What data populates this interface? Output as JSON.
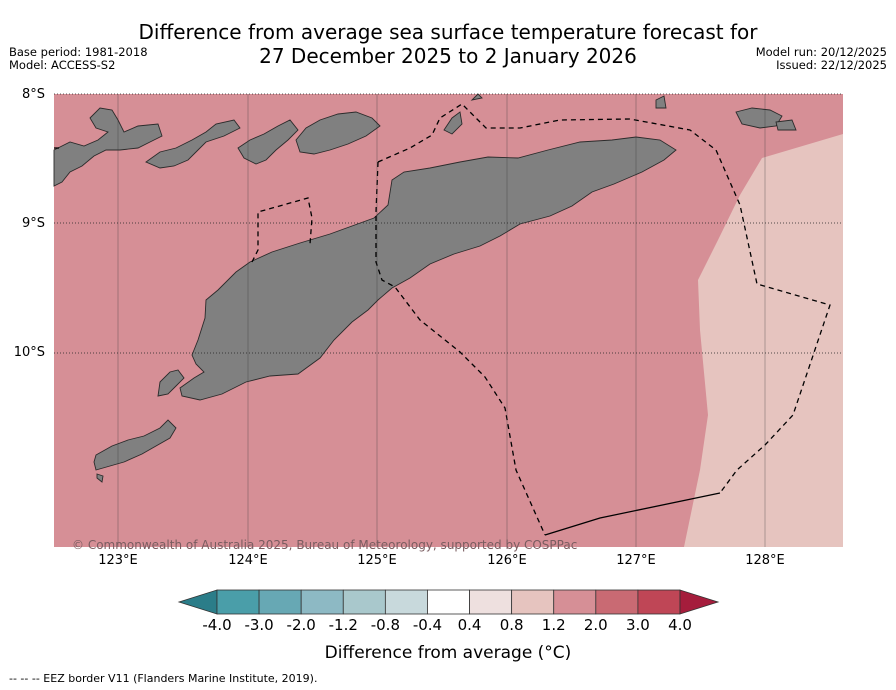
{
  "title": {
    "line1": "Difference from average sea surface temperature forecast for",
    "line2": "27 December 2025 to 2 January 2026"
  },
  "meta_left": {
    "base_period": "Base period: 1981-2018",
    "model": "Model: ACCESS-S2"
  },
  "meta_right": {
    "model_run": "Model run: 20/12/2025",
    "issued": "Issued: 22/12/2025"
  },
  "map": {
    "lat_labels": [
      "8°S",
      "9°S",
      "10°S"
    ],
    "lon_labels": [
      "123°E",
      "124°E",
      "125°E",
      "126°E",
      "127°E",
      "128°E"
    ],
    "copyright": "© Commonwealth of Australia 2025, Bureau of Meteorology, supported by COSPPac",
    "colors": {
      "sea_main": "#d68f96",
      "sea_cool": "#e6c4bf",
      "land": "#808080"
    }
  },
  "colorbar": {
    "ticks": [
      "-4.0",
      "-3.0",
      "-2.0",
      "-1.2",
      "-0.8",
      "-0.4",
      "0.4",
      "0.8",
      "1.2",
      "2.0",
      "3.0",
      "4.0"
    ],
    "colors": [
      "#2b7d89",
      "#4a9ea9",
      "#67a8b4",
      "#8db9c4",
      "#a9c8cc",
      "#c8d9dc",
      "#ffffff",
      "#eee0df",
      "#e6c4bf",
      "#d68f96",
      "#c96a73",
      "#bf4656",
      "#a51d3c"
    ],
    "label": "Difference from average (°C)"
  },
  "footer": "--  --  -- EEZ border V11 (Flanders Marine Institute, 2019)."
}
